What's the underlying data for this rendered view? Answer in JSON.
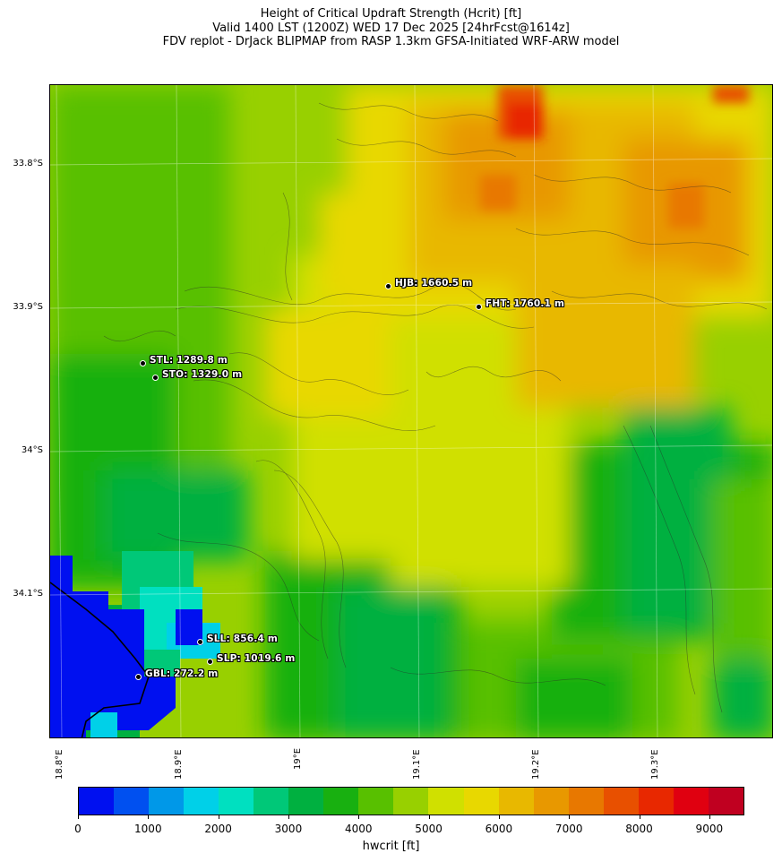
{
  "title": {
    "line1": "Height of Critical Updraft Strength (Hcrit) [ft]",
    "line2": "Valid 1400 LST (1200Z) WED 17 Dec 2025 [24hrFcst@1614z]",
    "line3": "FDV replot - DrJack BLIPMAP from RASP 1.3km GFSA-Initiated WRF-ARW model"
  },
  "latitude_labels": [
    "33.8°S",
    "33.9°S",
    "34°S",
    "34.1°S"
  ],
  "longitude_labels": [
    "18.8°E",
    "18.9°E",
    "19°E",
    "19.1°E",
    "19.2°E",
    "19.3°E"
  ],
  "stations": [
    {
      "id": "HJB",
      "label": "HJB: 1660.5 m",
      "elevation_m": 1660.5,
      "lat": -33.885,
      "lon": 19.075
    },
    {
      "id": "FHT",
      "label": "FHT: 1760.1 m",
      "elevation_m": 1760.1,
      "lat": -33.9,
      "lon": 19.153
    },
    {
      "id": "STL",
      "label": "STL: 1289.8 m",
      "elevation_m": 1289.8,
      "lat": -33.94,
      "lon": 18.877
    },
    {
      "id": "STO",
      "label": "STO: 1329.0 m",
      "elevation_m": 1329.0,
      "lat": -33.95,
      "lon": 18.887
    },
    {
      "id": "SLL",
      "label": "SLL: 856.4 m",
      "elevation_m": 856.4,
      "lat": -34.134,
      "lon": 18.925
    },
    {
      "id": "SLP",
      "label": "SLP: 1019.6 m",
      "elevation_m": 1019.6,
      "lat": -34.148,
      "lon": 18.933
    },
    {
      "id": "GBL",
      "label": "GBL: 272.2 m",
      "elevation_m": 272.2,
      "lat": -34.157,
      "lon": 18.873
    }
  ],
  "colorbar": {
    "label": "hwcrit [ft]",
    "tick_labels": [
      "0",
      "1000",
      "2000",
      "3000",
      "4000",
      "5000",
      "6000",
      "7000",
      "8000",
      "9000"
    ],
    "min": 0,
    "max": 9500,
    "step": 500,
    "colors": [
      "#0010f0",
      "#0050f0",
      "#0098e8",
      "#00d0e8",
      "#00e0c0",
      "#00c878",
      "#00b040",
      "#18b010",
      "#58c000",
      "#98d000",
      "#d0e000",
      "#e8d800",
      "#e8b800",
      "#e89800",
      "#e87800",
      "#e85000",
      "#e82800",
      "#e00010",
      "#c00020"
    ]
  }
}
